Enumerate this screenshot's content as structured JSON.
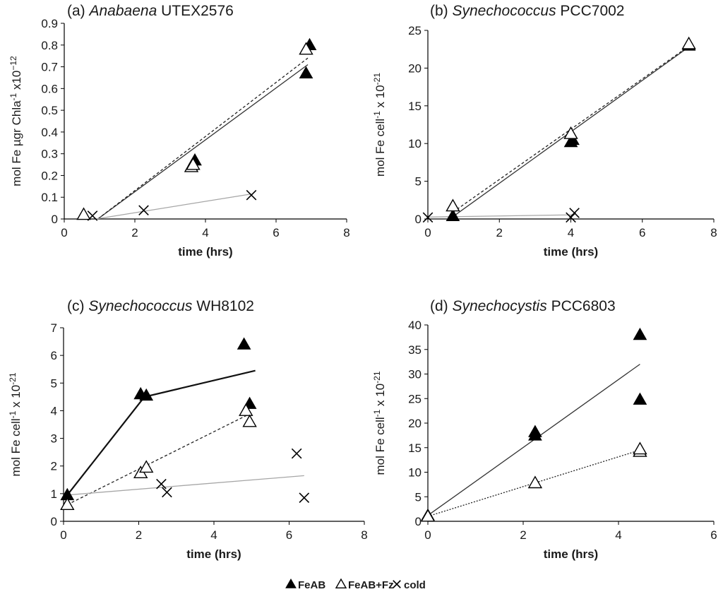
{
  "legend": [
    {
      "key": "feab",
      "label": "FeAB",
      "marker": "filled-triangle"
    },
    {
      "key": "feabfz",
      "label": "FeAB+Fz",
      "marker": "open-triangle"
    },
    {
      "key": "cold",
      "label": "cold",
      "marker": "cross"
    }
  ],
  "chart_data": [
    {
      "type": "scatter",
      "panel_label": "(a)",
      "title_italic": "Anabaena",
      "title_rest": "UTEX2576",
      "xlabel": "time (hrs)",
      "ylabel_parts": [
        "mol Fe µgr Chla",
        "-1",
        " x10",
        "−12"
      ],
      "xlim": [
        0,
        8
      ],
      "ylim": [
        0,
        0.9
      ],
      "xticks": [
        0,
        2,
        4,
        6,
        8
      ],
      "yticks": [
        0,
        0.1,
        0.2,
        0.3,
        0.4,
        0.5,
        0.6,
        0.7,
        0.8,
        0.9
      ],
      "series": [
        {
          "name": "FeAB",
          "marker": "filled-triangle",
          "points": [
            [
              3.7,
              0.27
            ],
            [
              6.85,
              0.67
            ],
            [
              6.95,
              0.8
            ]
          ],
          "fit": {
            "style": "solid-dark",
            "from": [
              0.95,
              0.0
            ],
            "to": [
              6.9,
              0.71
            ]
          }
        },
        {
          "name": "FeAB+Fz",
          "marker": "open-triangle",
          "points": [
            [
              0.55,
              0.02
            ],
            [
              3.6,
              0.24
            ],
            [
              3.65,
              0.25
            ],
            [
              6.85,
              0.78
            ]
          ],
          "fit": {
            "style": "dashed",
            "from": [
              0.95,
              0.0
            ],
            "to": [
              6.9,
              0.74
            ]
          }
        },
        {
          "name": "cold",
          "marker": "cross",
          "points": [
            [
              0.8,
              0.015
            ],
            [
              2.25,
              0.04
            ],
            [
              5.3,
              0.11
            ]
          ],
          "fit": {
            "style": "solid-gray",
            "from": [
              0.9,
              0.0
            ],
            "to": [
              5.3,
              0.115
            ]
          }
        }
      ]
    },
    {
      "type": "scatter",
      "panel_label": "(b)",
      "title_italic": "Synechococcus",
      "title_rest": "PCC7002",
      "xlabel": "time (hrs)",
      "ylabel_parts": [
        "mol Fe  cell",
        "-1",
        " x 10",
        "-21"
      ],
      "xlim": [
        0,
        8
      ],
      "ylim": [
        0,
        25
      ],
      "xticks": [
        0,
        2,
        4,
        6,
        8
      ],
      "yticks": [
        0,
        5,
        10,
        15,
        20,
        25
      ],
      "series": [
        {
          "name": "FeAB",
          "marker": "filled-triangle",
          "points": [
            [
              0.7,
              0.4
            ],
            [
              4.0,
              10.2
            ],
            [
              4.05,
              10.5
            ],
            [
              7.3,
              23.0
            ]
          ],
          "fit": {
            "style": "solid-dark",
            "from": [
              0.7,
              0.3
            ],
            "to": [
              7.3,
              22.8
            ]
          }
        },
        {
          "name": "FeAB+Fz",
          "marker": "open-triangle",
          "points": [
            [
              0.7,
              1.7
            ],
            [
              4.0,
              11.3
            ],
            [
              7.3,
              23.2
            ]
          ],
          "fit": {
            "style": "dashed",
            "from": [
              0.7,
              0.9
            ],
            "to": [
              7.3,
              22.9
            ]
          }
        },
        {
          "name": "cold",
          "marker": "cross",
          "points": [
            [
              0.0,
              0.2
            ],
            [
              4.0,
              0.2
            ],
            [
              4.1,
              0.8
            ]
          ],
          "fit": {
            "style": "solid-gray",
            "from": [
              0.0,
              0.25
            ],
            "to": [
              4.1,
              0.55
            ]
          }
        }
      ]
    },
    {
      "type": "scatter",
      "panel_label": "(c)",
      "title_italic": "Synechococcus",
      "title_rest": "WH8102",
      "xlabel": "time (hrs)",
      "ylabel_parts": [
        "mol Fe  cell",
        "-1",
        " x 10",
        "-21"
      ],
      "xlim": [
        0,
        8
      ],
      "ylim": [
        0,
        7
      ],
      "xticks": [
        0,
        2,
        4,
        6,
        8
      ],
      "yticks": [
        0,
        1,
        2,
        3,
        4,
        5,
        6,
        7
      ],
      "series": [
        {
          "name": "FeAB",
          "marker": "filled-triangle",
          "points": [
            [
              0.1,
              0.95
            ],
            [
              2.05,
              4.6
            ],
            [
              2.2,
              4.55
            ],
            [
              4.8,
              6.4
            ],
            [
              4.95,
              4.25
            ]
          ],
          "fit": {
            "style": "solid-dark-thick",
            "from": [
              0.1,
              0.95
            ],
            "to": [
              2.15,
              4.5
            ],
            "to2": [
              5.1,
              5.45
            ]
          }
        },
        {
          "name": "FeAB+Fz",
          "marker": "open-triangle",
          "points": [
            [
              0.1,
              0.6
            ],
            [
              2.05,
              1.75
            ],
            [
              2.2,
              1.95
            ],
            [
              4.85,
              4.0
            ],
            [
              4.95,
              3.6
            ]
          ],
          "fit": {
            "style": "dashed",
            "from": [
              0.1,
              0.6
            ],
            "to": [
              4.9,
              3.85
            ]
          }
        },
        {
          "name": "cold",
          "marker": "cross",
          "points": [
            [
              2.6,
              1.35
            ],
            [
              2.75,
              1.05
            ],
            [
              6.2,
              2.45
            ],
            [
              6.4,
              0.85
            ]
          ],
          "fit": {
            "style": "solid-gray",
            "from": [
              0.1,
              0.95
            ],
            "to": [
              6.4,
              1.65
            ]
          }
        }
      ]
    },
    {
      "type": "scatter",
      "panel_label": "(d)",
      "title_italic": "Synechocystis",
      "title_rest": "PCC6803",
      "xlabel": "time (hrs)",
      "ylabel_parts": [
        "mol Fe cell",
        "-1",
        " x 10",
        "-21"
      ],
      "xlim": [
        0,
        6
      ],
      "ylim": [
        0,
        40
      ],
      "xticks": [
        0,
        2,
        4,
        6
      ],
      "yticks": [
        0,
        5,
        10,
        15,
        20,
        25,
        30,
        35,
        40
      ],
      "series": [
        {
          "name": "FeAB",
          "marker": "filled-triangle",
          "points": [
            [
              0.0,
              1.2
            ],
            [
              2.25,
              17.5
            ],
            [
              2.25,
              18.2
            ],
            [
              4.45,
              24.8
            ],
            [
              4.45,
              38.0
            ]
          ],
          "fit": {
            "style": "solid-dark",
            "from": [
              0.0,
              1.2
            ],
            "to": [
              4.45,
              32.0
            ]
          }
        },
        {
          "name": "FeAB+Fz",
          "marker": "open-triangle",
          "points": [
            [
              0.0,
              1.0
            ],
            [
              2.25,
              7.8
            ],
            [
              4.45,
              14.2
            ],
            [
              4.45,
              14.7
            ]
          ],
          "fit": {
            "style": "dotted",
            "from": [
              0.0,
              1.0
            ],
            "to": [
              4.45,
              14.5
            ]
          }
        }
      ]
    }
  ]
}
